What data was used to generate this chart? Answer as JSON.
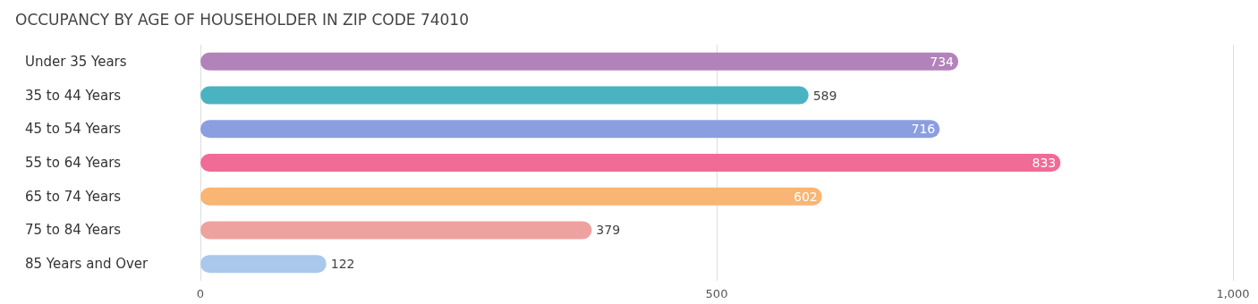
{
  "chart_data": {
    "type": "bar",
    "orientation": "horizontal",
    "title": "OCCUPANCY BY AGE OF HOUSEHOLDER IN ZIP CODE 74010",
    "categories": [
      "Under 35 Years",
      "35 to 44 Years",
      "45 to 54 Years",
      "55 to 64 Years",
      "65 to 74 Years",
      "75 to 84 Years",
      "85 Years and Over"
    ],
    "values": [
      734,
      589,
      716,
      833,
      602,
      379,
      122
    ],
    "colors": [
      "#b283bb",
      "#4ab3c2",
      "#8b9ee0",
      "#f06b95",
      "#f9b574",
      "#eea29f",
      "#a9c8ec"
    ],
    "xlim": [
      0,
      1000
    ],
    "xticks": [
      0,
      500,
      {
        "value": 1000,
        "label": "1,000"
      }
    ],
    "grid": "x",
    "data_labels": true
  }
}
